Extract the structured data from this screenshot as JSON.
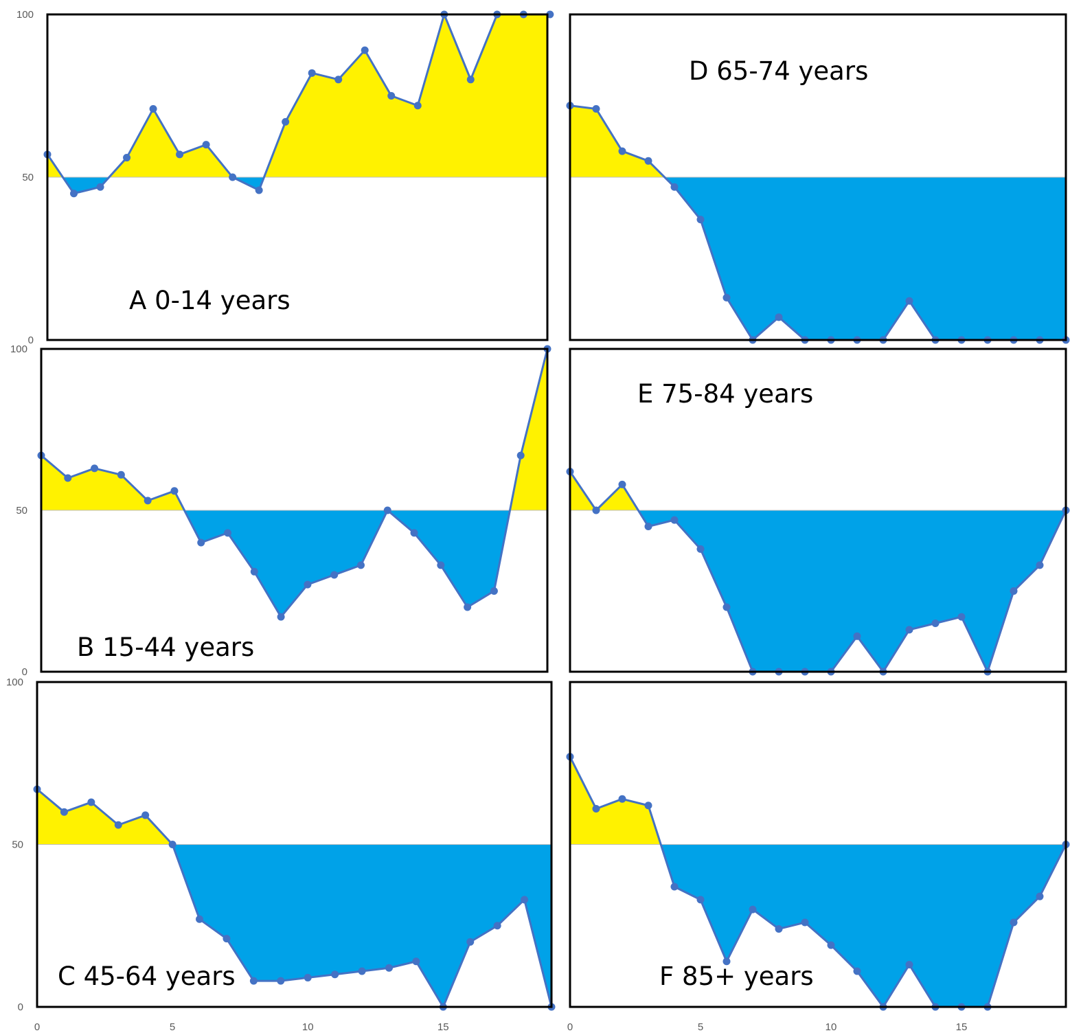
{
  "chart_data": [
    {
      "type": "area",
      "panel": "A",
      "label": "A 0-14 years",
      "baseline": 50,
      "ylim": [
        0,
        100
      ],
      "y_ticks": [
        "0",
        "50",
        "100"
      ],
      "x": [
        0,
        1,
        2,
        3,
        4,
        5,
        6,
        7,
        8,
        9,
        10,
        11,
        12,
        13,
        14,
        15,
        16,
        17,
        18,
        19
      ],
      "values": [
        57,
        45,
        47,
        56,
        71,
        57,
        60,
        50,
        46,
        67,
        82,
        80,
        89,
        75,
        72,
        100,
        80,
        100,
        100,
        100
      ]
    },
    {
      "type": "area",
      "panel": "B",
      "label": "B 15-44 years",
      "baseline": 50,
      "ylim": [
        0,
        100
      ],
      "y_ticks": [
        "0",
        "50",
        "100"
      ],
      "x": [
        0,
        1,
        2,
        3,
        4,
        5,
        6,
        7,
        8,
        9,
        10,
        11,
        12,
        13,
        14,
        15,
        16,
        17,
        18,
        19
      ],
      "values": [
        67,
        60,
        63,
        61,
        53,
        56,
        40,
        43,
        31,
        17,
        27,
        30,
        33,
        50,
        43,
        33,
        20,
        25,
        67,
        100
      ]
    },
    {
      "type": "area",
      "panel": "C",
      "label": "C 45-64 years",
      "baseline": 50,
      "ylim": [
        0,
        100
      ],
      "y_ticks": [
        "0",
        "50",
        "100"
      ],
      "x_ticks": [
        "0",
        "5",
        "10",
        "15"
      ],
      "x": [
        0,
        1,
        2,
        3,
        4,
        5,
        6,
        7,
        8,
        9,
        10,
        11,
        12,
        13,
        14,
        15,
        16,
        17,
        18,
        19
      ],
      "values": [
        67,
        60,
        63,
        56,
        59,
        50,
        27,
        21,
        8,
        8,
        9,
        10,
        11,
        12,
        14,
        0,
        20,
        25,
        33,
        0
      ]
    },
    {
      "type": "area",
      "panel": "D",
      "label": "D 65-74 years",
      "baseline": 50,
      "ylim": [
        0,
        100
      ],
      "x": [
        0,
        1,
        2,
        3,
        4,
        5,
        6,
        7,
        8,
        9,
        10,
        11,
        12,
        13,
        14,
        15,
        16,
        17,
        18,
        19
      ],
      "values": [
        72,
        71,
        58,
        55,
        47,
        37,
        13,
        0,
        7,
        0,
        0,
        0,
        0,
        12,
        0,
        0,
        0,
        0,
        0,
        0
      ]
    },
    {
      "type": "area",
      "panel": "E",
      "label": "E 75-84 years",
      "baseline": 50,
      "ylim": [
        0,
        100
      ],
      "x": [
        0,
        1,
        2,
        3,
        4,
        5,
        6,
        7,
        8,
        9,
        10,
        11,
        12,
        13,
        14,
        15,
        16,
        17,
        18,
        19
      ],
      "values": [
        62,
        50,
        58,
        45,
        47,
        38,
        20,
        0,
        0,
        0,
        0,
        11,
        0,
        13,
        15,
        17,
        0,
        25,
        33,
        50
      ]
    },
    {
      "type": "area",
      "panel": "F",
      "label": "F 85+ years",
      "baseline": 50,
      "ylim": [
        0,
        100
      ],
      "x_ticks": [
        "0",
        "5",
        "10",
        "15"
      ],
      "x": [
        0,
        1,
        2,
        3,
        4,
        5,
        6,
        7,
        8,
        9,
        10,
        11,
        12,
        13,
        14,
        15,
        16,
        17,
        18,
        19
      ],
      "values": [
        77,
        61,
        64,
        62,
        37,
        33,
        14,
        30,
        24,
        26,
        19,
        11,
        0,
        13,
        0,
        0,
        0,
        26,
        34,
        50
      ]
    }
  ],
  "colors": {
    "above": "#FFF200",
    "below": "#00A2E8",
    "line": "#4472C4",
    "baseline": "#BFBFBF",
    "frame": "#000000",
    "tick": "#595959"
  }
}
